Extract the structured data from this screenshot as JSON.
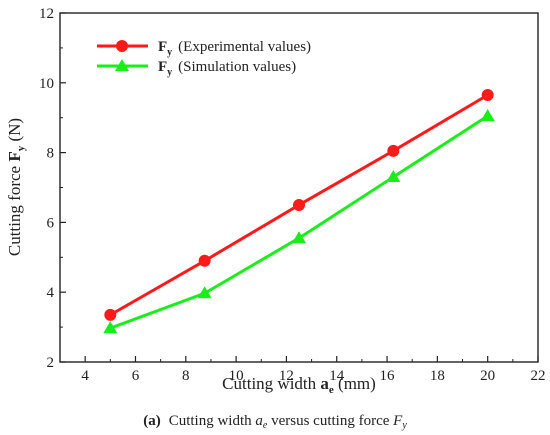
{
  "chart_data": {
    "type": "line",
    "x": [
      5,
      8.75,
      12.5,
      16.25,
      20
    ],
    "xlim": [
      3,
      22
    ],
    "ylim": [
      2,
      12
    ],
    "x_ticks": [
      4,
      6,
      8,
      10,
      12,
      14,
      16,
      18,
      20,
      22
    ],
    "y_ticks": [
      2,
      4,
      6,
      8,
      10,
      12
    ],
    "x_tick_labels": [
      "4",
      "6",
      "8",
      "10",
      "12",
      "14",
      "16",
      "18",
      "20",
      "22"
    ],
    "y_tick_labels": [
      "2",
      "4",
      "6",
      "8",
      "10",
      "12"
    ],
    "xlabel": {
      "main": "Cutting width ",
      "var": "a",
      "sub": "e",
      "unit": " (mm)"
    },
    "ylabel": {
      "main": "Cutting force ",
      "var": "F",
      "sub": "y",
      "unit": " (N)"
    },
    "grid": false,
    "legend_position": "top-left",
    "series": [
      {
        "name": "(Experimental values)",
        "symbol": "F",
        "symbol_sub": "y",
        "marker": "circle",
        "color": "#ff1a1a",
        "values": [
          3.35,
          4.9,
          6.5,
          8.05,
          9.65
        ]
      },
      {
        "name": "(Simulation values)",
        "symbol": "F",
        "symbol_sub": "y",
        "marker": "triangle",
        "color": "#1aee1a",
        "values": [
          2.97,
          3.97,
          5.55,
          7.3,
          9.05
        ]
      }
    ]
  },
  "caption": {
    "label": "(a)",
    "pre": "Cutting width ",
    "var1": "a",
    "sub1": "e",
    "mid": " versus cutting force ",
    "var2": "F",
    "sub2": "y"
  }
}
